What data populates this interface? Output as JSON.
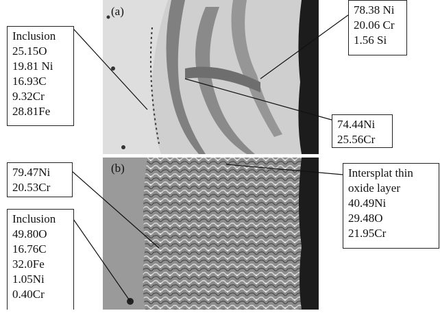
{
  "panels": [
    {
      "label": "(a)"
    },
    {
      "label": "(b)"
    }
  ],
  "callouts": [
    {
      "lines": [
        "Inclusion",
        "25.15O",
        "19.81 Ni",
        "16.93C",
        "9.32Cr",
        "28.81Fe"
      ]
    },
    {
      "lines": [
        "78.38 Ni",
        "20.06 Cr",
        "1.56 Si"
      ]
    },
    {
      "lines": [
        "74.44Ni",
        "25.56Cr"
      ]
    },
    {
      "lines": [
        "79.47Ni",
        "20.53Cr"
      ]
    },
    {
      "lines": [
        "Inclusion",
        "49.80O",
        "16.76C",
        "32.0Fe",
        "1.05Ni",
        "0.40Cr"
      ]
    },
    {
      "lines": [
        "Intersplat thin",
        "oxide layer",
        "40.49Ni",
        "29.48O",
        "21.95Cr"
      ]
    }
  ]
}
